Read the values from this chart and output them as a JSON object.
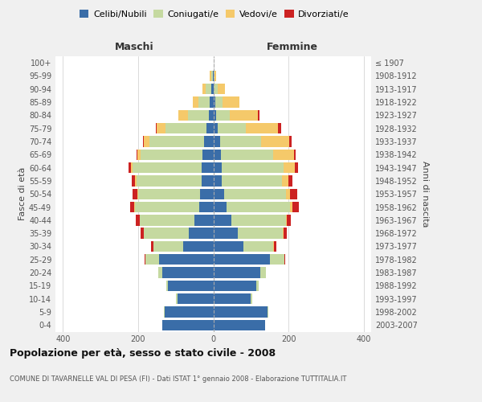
{
  "age_groups": [
    "0-4",
    "5-9",
    "10-14",
    "15-19",
    "20-24",
    "25-29",
    "30-34",
    "35-39",
    "40-44",
    "45-49",
    "50-54",
    "55-59",
    "60-64",
    "65-69",
    "70-74",
    "75-79",
    "80-84",
    "85-89",
    "90-94",
    "95-99",
    "100+"
  ],
  "birth_years": [
    "2003-2007",
    "1998-2002",
    "1993-1997",
    "1988-1992",
    "1983-1987",
    "1978-1982",
    "1973-1977",
    "1968-1972",
    "1963-1967",
    "1958-1962",
    "1953-1957",
    "1948-1952",
    "1943-1947",
    "1938-1942",
    "1933-1937",
    "1928-1932",
    "1923-1927",
    "1918-1922",
    "1913-1917",
    "1908-1912",
    "≤ 1907"
  ],
  "maschi": {
    "celibi": [
      135,
      130,
      95,
      120,
      135,
      145,
      80,
      65,
      50,
      38,
      35,
      30,
      30,
      28,
      25,
      18,
      12,
      10,
      5,
      2,
      0
    ],
    "coniugati": [
      0,
      2,
      4,
      5,
      12,
      35,
      80,
      120,
      145,
      170,
      165,
      175,
      185,
      165,
      145,
      110,
      55,
      30,
      15,
      4,
      0
    ],
    "vedovi": [
      0,
      0,
      0,
      0,
      0,
      0,
      0,
      0,
      1,
      2,
      2,
      3,
      5,
      8,
      15,
      22,
      25,
      15,
      8,
      3,
      0
    ],
    "divorziati": [
      0,
      0,
      0,
      0,
      0,
      2,
      5,
      8,
      10,
      12,
      12,
      10,
      5,
      4,
      3,
      2,
      2,
      0,
      0,
      0,
      0
    ]
  },
  "femmine": {
    "nubili": [
      138,
      145,
      100,
      115,
      125,
      150,
      80,
      65,
      48,
      35,
      28,
      22,
      22,
      20,
      18,
      12,
      8,
      5,
      2,
      0,
      0
    ],
    "coniugate": [
      0,
      2,
      3,
      5,
      15,
      40,
      80,
      120,
      145,
      170,
      165,
      160,
      165,
      140,
      110,
      75,
      35,
      20,
      10,
      3,
      0
    ],
    "vedove": [
      0,
      0,
      0,
      0,
      0,
      0,
      2,
      2,
      3,
      5,
      12,
      18,
      30,
      55,
      75,
      85,
      75,
      45,
      20,
      5,
      0
    ],
    "divorziate": [
      0,
      0,
      0,
      0,
      0,
      2,
      5,
      8,
      10,
      18,
      18,
      10,
      8,
      5,
      5,
      8,
      5,
      0,
      0,
      0,
      0
    ]
  },
  "colors": {
    "celibi": "#3a6da8",
    "coniugati": "#c5d9a0",
    "vedovi": "#f5c96a",
    "divorziati": "#cc2222"
  },
  "xlim": 420,
  "title": "Popolazione per età, sesso e stato civile - 2008",
  "subtitle": "COMUNE DI TAVARNELLE VAL DI PESA (FI) - Dati ISTAT 1° gennaio 2008 - Elaborazione TUTTITALIA.IT",
  "ylabel_left": "Fasce di età",
  "ylabel_right": "Anni di nascita",
  "xlabel_left": "Maschi",
  "xlabel_right": "Femmine",
  "legend_labels": [
    "Celibi/Nubili",
    "Coniugati/e",
    "Vedovi/e",
    "Divorziati/e"
  ],
  "bg_color": "#f0f0f0",
  "plot_bg": "#ffffff"
}
